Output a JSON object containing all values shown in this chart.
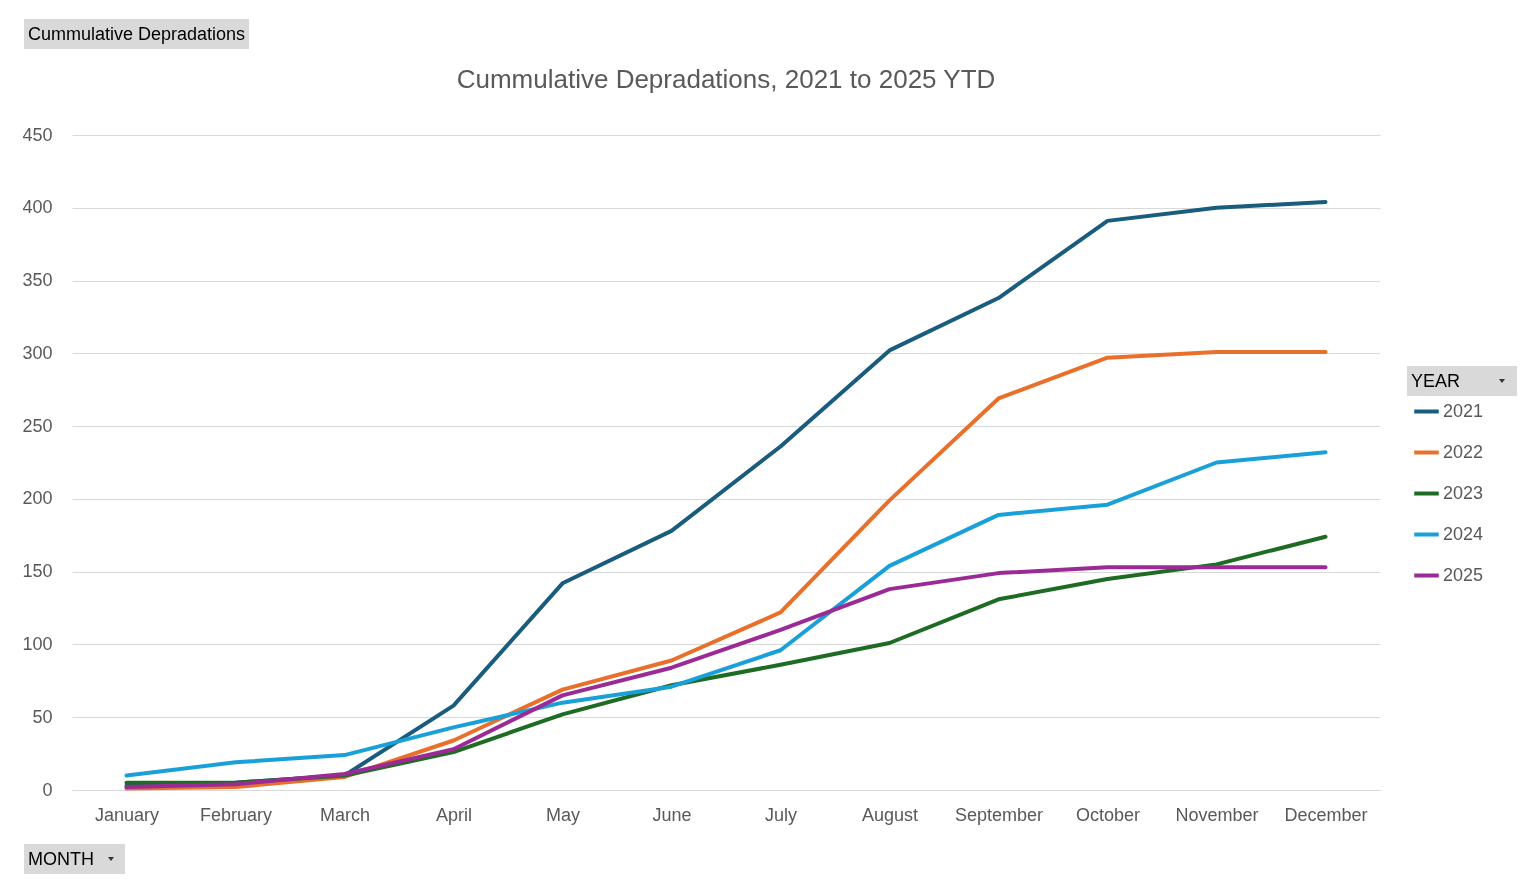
{
  "chart_data": {
    "type": "line",
    "title": "Cummulative Depradations, 2021 to 2025 YTD",
    "ylabel": "Cummulative Depradations",
    "xlabel": "MONTH",
    "legend_title": "YEAR",
    "categories": [
      "January",
      "February",
      "March",
      "April",
      "May",
      "June",
      "July",
      "August",
      "September",
      "October",
      "November",
      "December"
    ],
    "ylim": [
      0,
      450
    ],
    "yticks": [
      0,
      50,
      100,
      150,
      200,
      250,
      300,
      350,
      400,
      450
    ],
    "grid": "y",
    "legend": "right",
    "series": [
      {
        "name": "2021",
        "color": "#1a5c7e",
        "values": [
          3,
          5,
          10,
          58,
          142,
          178,
          236,
          302,
          338,
          391,
          400,
          404
        ]
      },
      {
        "name": "2022",
        "color": "#e8702a",
        "values": [
          1,
          2,
          9,
          34,
          69,
          89,
          122,
          199,
          269,
          297,
          301,
          301
        ]
      },
      {
        "name": "2023",
        "color": "#1e6b24",
        "values": [
          5,
          5,
          10,
          26,
          52,
          72,
          86,
          101,
          131,
          145,
          155,
          174
        ]
      },
      {
        "name": "2024",
        "color": "#1aa0d8",
        "values": [
          10,
          19,
          24,
          43,
          60,
          71,
          96,
          154,
          189,
          196,
          225,
          232
        ]
      },
      {
        "name": "2025",
        "color": "#9c2a96",
        "values": [
          2,
          4,
          11,
          28,
          65,
          84,
          110,
          138,
          149,
          153,
          153,
          153
        ]
      }
    ]
  }
}
